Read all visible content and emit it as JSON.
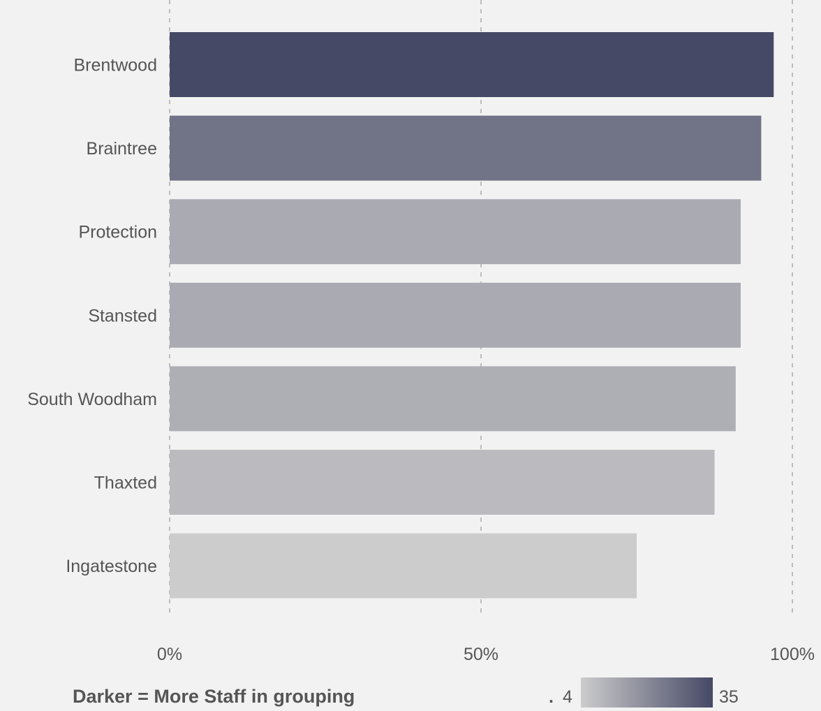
{
  "chart_data": {
    "type": "bar",
    "orientation": "horizontal",
    "categories": [
      "Brentwood",
      "Braintree",
      "Protection",
      "Stansted",
      "South Woodham",
      "Thaxted",
      "Ingatestone"
    ],
    "values": [
      0.97,
      0.95,
      0.917,
      0.917,
      0.909,
      0.875,
      0.75
    ],
    "color_values": [
      35,
      25,
      12,
      12,
      11,
      8,
      4
    ],
    "xlim": [
      0,
      1
    ],
    "x_ticks": [
      {
        "value": 0,
        "label": "0%"
      },
      {
        "value": 0.5,
        "label": "50%"
      },
      {
        "value": 1,
        "label": "100%"
      }
    ],
    "grid": "vertical-dashed",
    "legend": {
      "title": "Darker = More Staff in grouping",
      "min_label": "4",
      "max_label": "35",
      "min": 4,
      "max": 35,
      "min_color": "#cccccc",
      "max_color": "#464966",
      "placement": "bottom"
    }
  }
}
